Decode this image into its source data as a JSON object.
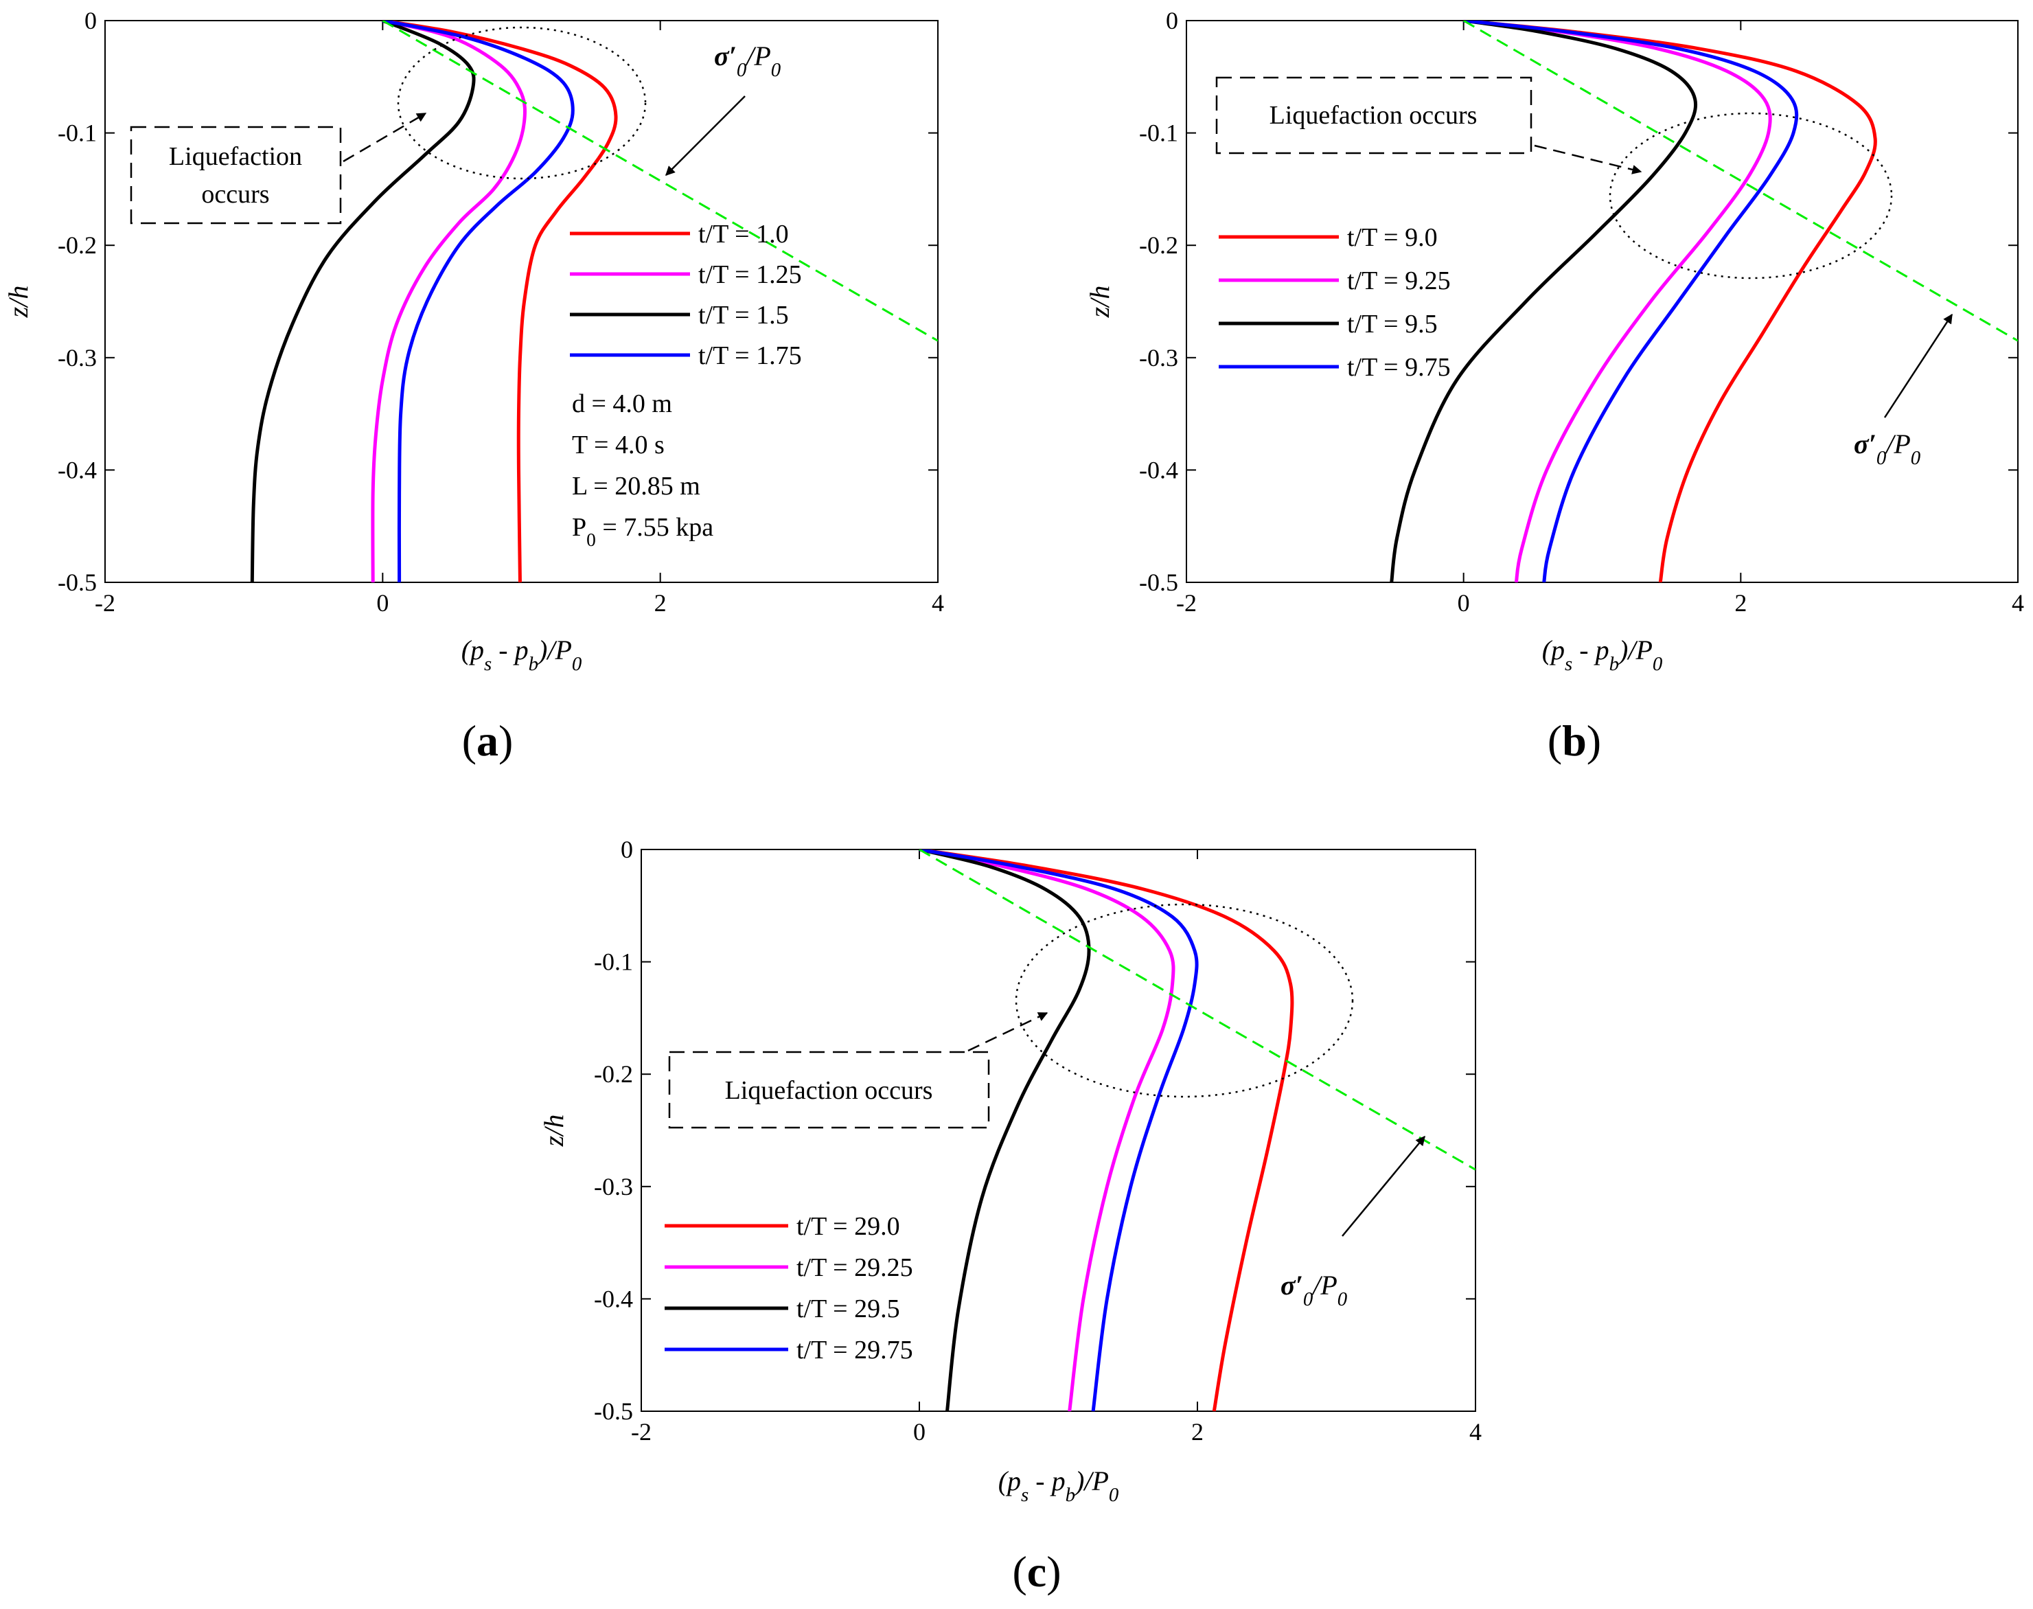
{
  "chart_data": [
    {
      "type": "line",
      "panel_label": "(a)",
      "xlabel": "(ps - pb)/P0",
      "ylabel": "z/h",
      "xlim": [
        -2,
        4
      ],
      "ylim": [
        -0.5,
        0
      ],
      "xticks": [
        -2,
        0,
        2,
        4
      ],
      "yticks": [
        0,
        -0.1,
        -0.2,
        -0.3,
        -0.4,
        -0.5
      ],
      "xtick_labels": [
        "-2",
        "0",
        "2",
        "4"
      ],
      "ytick_labels": [
        "0",
        "-0.1",
        "-0.2",
        "-0.3",
        "-0.4",
        "-0.5"
      ],
      "grid": false,
      "legend_position": "right",
      "series": [
        {
          "name": "t/T = 1.0",
          "color": "#ff0000",
          "x": [
            0,
            0.5,
            1.0,
            1.35,
            1.6,
            1.68,
            1.62,
            1.45,
            1.25,
            1.1,
            1.02,
            0.99,
            0.98,
            0.98,
            0.99
          ],
          "y": [
            0,
            -0.01,
            -0.025,
            -0.04,
            -0.06,
            -0.085,
            -0.11,
            -0.14,
            -0.17,
            -0.2,
            -0.25,
            -0.3,
            -0.35,
            -0.4,
            -0.5
          ]
        },
        {
          "name": "t/T = 1.25",
          "color": "#ff00ff",
          "x": [
            0,
            0.5,
            0.85,
            1.0,
            1.02,
            0.95,
            0.8,
            0.55,
            0.3,
            0.1,
            0.0,
            -0.05,
            -0.07,
            -0.07
          ],
          "y": [
            0,
            -0.015,
            -0.04,
            -0.065,
            -0.09,
            -0.12,
            -0.15,
            -0.18,
            -0.22,
            -0.27,
            -0.32,
            -0.37,
            -0.42,
            -0.5
          ]
        },
        {
          "name": "t/T = 1.5",
          "color": "#000000",
          "x": [
            0,
            0.4,
            0.62,
            0.65,
            0.55,
            0.3,
            -0.05,
            -0.4,
            -0.65,
            -0.82,
            -0.9,
            -0.93,
            -0.94
          ],
          "y": [
            0,
            -0.02,
            -0.04,
            -0.06,
            -0.09,
            -0.12,
            -0.16,
            -0.21,
            -0.27,
            -0.33,
            -0.38,
            -0.43,
            -0.5
          ]
        },
        {
          "name": "t/T = 1.75",
          "color": "#0000ff",
          "x": [
            0,
            0.6,
            1.05,
            1.3,
            1.37,
            1.3,
            1.1,
            0.82,
            0.55,
            0.32,
            0.18,
            0.13,
            0.12,
            0.12
          ],
          "y": [
            0,
            -0.015,
            -0.035,
            -0.055,
            -0.08,
            -0.105,
            -0.135,
            -0.165,
            -0.2,
            -0.25,
            -0.3,
            -0.35,
            -0.42,
            -0.5
          ]
        },
        {
          "name": "σ'0/P0",
          "color": "#00ee00",
          "style": "dashed",
          "x": [
            0,
            4.0
          ],
          "y": [
            0,
            -0.285
          ]
        }
      ],
      "annotations": {
        "liquefaction_label": [
          "Liquefaction",
          "occurs"
        ],
        "sigma_label": "σ′0/P0",
        "parameters": [
          "d = 4.0 m",
          "T = 4.0 s",
          "L = 20.85 m",
          "P0 = 7.55 kpa"
        ]
      }
    },
    {
      "type": "line",
      "panel_label": "(b)",
      "xlabel": "(ps - pb)/P0",
      "ylabel": "z/h",
      "xlim": [
        -2,
        4
      ],
      "ylim": [
        -0.5,
        0
      ],
      "xticks": [
        -2,
        0,
        2,
        4
      ],
      "yticks": [
        0,
        -0.1,
        -0.2,
        -0.3,
        -0.4,
        -0.5
      ],
      "xtick_labels": [
        "-2",
        "0",
        "2",
        "4"
      ],
      "ytick_labels": [
        "0",
        "-0.1",
        "-0.2",
        "-0.3",
        "-0.4",
        "-0.5"
      ],
      "grid": false,
      "legend_position": "left",
      "series": [
        {
          "name": "t/T = 9.0",
          "color": "#ff0000",
          "x": [
            0,
            0.8,
            1.7,
            2.4,
            2.85,
            2.97,
            2.9,
            2.72,
            2.45,
            2.15,
            1.85,
            1.62,
            1.47,
            1.42
          ],
          "y": [
            0,
            -0.01,
            -0.025,
            -0.045,
            -0.075,
            -0.105,
            -0.135,
            -0.17,
            -0.22,
            -0.28,
            -0.34,
            -0.4,
            -0.46,
            -0.5
          ]
        },
        {
          "name": "t/T = 9.25",
          "color": "#ff00ff",
          "x": [
            0,
            0.7,
            1.4,
            1.9,
            2.17,
            2.2,
            2.05,
            1.75,
            1.35,
            0.95,
            0.6,
            0.42,
            0.38
          ],
          "y": [
            0,
            -0.01,
            -0.025,
            -0.045,
            -0.07,
            -0.1,
            -0.14,
            -0.19,
            -0.25,
            -0.32,
            -0.4,
            -0.47,
            -0.5
          ]
        },
        {
          "name": "t/T = 9.5",
          "color": "#000000",
          "x": [
            0,
            0.55,
            1.1,
            1.5,
            1.67,
            1.6,
            1.35,
            0.95,
            0.45,
            -0.05,
            -0.35,
            -0.48,
            -0.52
          ],
          "y": [
            0,
            -0.01,
            -0.025,
            -0.045,
            -0.07,
            -0.1,
            -0.14,
            -0.19,
            -0.25,
            -0.32,
            -0.4,
            -0.46,
            -0.5
          ]
        },
        {
          "name": "t/T = 9.75",
          "color": "#0000ff",
          "x": [
            0,
            0.75,
            1.55,
            2.1,
            2.37,
            2.38,
            2.2,
            1.9,
            1.55,
            1.15,
            0.8,
            0.62,
            0.58
          ],
          "y": [
            0,
            -0.01,
            -0.025,
            -0.045,
            -0.07,
            -0.1,
            -0.14,
            -0.19,
            -0.25,
            -0.32,
            -0.4,
            -0.47,
            -0.5
          ]
        },
        {
          "name": "σ'0/P0",
          "color": "#00ee00",
          "style": "dashed",
          "x": [
            0,
            4.0
          ],
          "y": [
            0,
            -0.285
          ]
        }
      ],
      "annotations": {
        "liquefaction_label": [
          "Liquefaction occurs"
        ],
        "sigma_label": "σ′0/P0"
      }
    },
    {
      "type": "line",
      "panel_label": "(c)",
      "xlabel": "(ps - pb)/P0",
      "ylabel": "z/h",
      "xlim": [
        -2,
        4
      ],
      "ylim": [
        -0.5,
        0
      ],
      "xticks": [
        -2,
        0,
        2,
        4
      ],
      "yticks": [
        0,
        -0.1,
        -0.2,
        -0.3,
        -0.4,
        -0.5
      ],
      "xtick_labels": [
        "-2",
        "0",
        "2",
        "4"
      ],
      "ytick_labels": [
        "0",
        "-0.1",
        "-0.2",
        "-0.3",
        "-0.4",
        "-0.5"
      ],
      "grid": false,
      "legend_position": "bottom-left",
      "series": [
        {
          "name": "t/T = 29.0",
          "color": "#ff0000",
          "x": [
            0,
            0.8,
            1.6,
            2.2,
            2.55,
            2.67,
            2.67,
            2.62,
            2.5,
            2.35,
            2.2,
            2.12
          ],
          "y": [
            0,
            -0.015,
            -0.035,
            -0.06,
            -0.09,
            -0.12,
            -0.16,
            -0.2,
            -0.27,
            -0.35,
            -0.44,
            -0.5
          ]
        },
        {
          "name": "t/T = 29.25",
          "color": "#ff00ff",
          "x": [
            0,
            0.6,
            1.2,
            1.6,
            1.8,
            1.82,
            1.75,
            1.55,
            1.35,
            1.18,
            1.08
          ],
          "y": [
            0,
            -0.015,
            -0.035,
            -0.06,
            -0.09,
            -0.12,
            -0.16,
            -0.22,
            -0.3,
            -0.4,
            -0.5
          ]
        },
        {
          "name": "t/T = 29.5",
          "color": "#000000",
          "x": [
            0,
            0.5,
            0.9,
            1.15,
            1.22,
            1.15,
            0.95,
            0.7,
            0.45,
            0.28,
            0.2
          ],
          "y": [
            0,
            -0.015,
            -0.035,
            -0.06,
            -0.09,
            -0.125,
            -0.17,
            -0.23,
            -0.31,
            -0.41,
            -0.5
          ]
        },
        {
          "name": "t/T = 29.75",
          "color": "#0000ff",
          "x": [
            0,
            0.7,
            1.4,
            1.82,
            1.98,
            1.98,
            1.9,
            1.72,
            1.52,
            1.35,
            1.25
          ],
          "y": [
            0,
            -0.015,
            -0.035,
            -0.06,
            -0.09,
            -0.12,
            -0.16,
            -0.22,
            -0.3,
            -0.4,
            -0.5
          ]
        },
        {
          "name": "σ'0/P0",
          "color": "#00ee00",
          "style": "dashed",
          "x": [
            0,
            4.0
          ],
          "y": [
            0,
            -0.285
          ]
        }
      ],
      "annotations": {
        "liquefaction_label": [
          "Liquefaction occurs"
        ],
        "sigma_label": "σ′0/P0"
      }
    }
  ]
}
